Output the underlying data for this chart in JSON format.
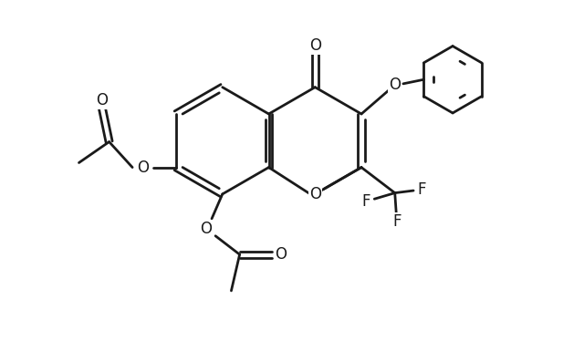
{
  "bg_color": "#ffffff",
  "line_color": "#1a1a1a",
  "line_width": 2.0,
  "figsize": [
    6.4,
    3.85
  ],
  "dpi": 100,
  "xlim": [
    0.0,
    11.0
  ],
  "ylim": [
    1.5,
    9.0
  ]
}
